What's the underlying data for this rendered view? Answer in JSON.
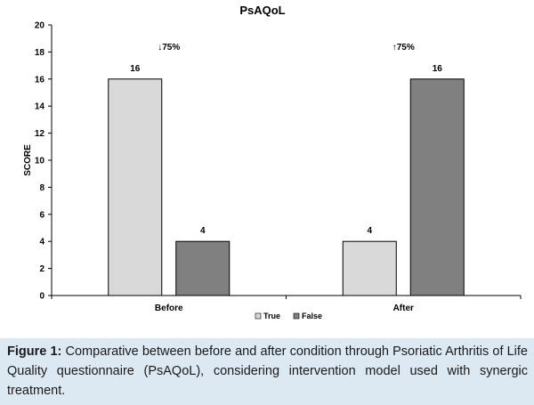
{
  "chart_data": {
    "type": "bar",
    "title": "PsAQoL",
    "ylabel": "SCORE",
    "xlabel": "",
    "categories": [
      "Before",
      "After"
    ],
    "ylim": [
      0,
      20
    ],
    "yticks": [
      "0",
      "2",
      "4",
      "6",
      "8",
      "10",
      "12",
      "14",
      "16",
      "18",
      "20"
    ],
    "series": [
      {
        "name": "True",
        "values": [
          16,
          4
        ],
        "color": "#d9d9d9"
      },
      {
        "name": "False",
        "values": [
          4,
          16
        ],
        "color": "#808080"
      }
    ],
    "data_labels": [
      [
        "16",
        "4"
      ],
      [
        "4",
        "16"
      ]
    ],
    "annotations": [
      "↓75%",
      "↑75%"
    ],
    "legend_position": "bottom",
    "grid": false
  },
  "caption": {
    "label": "Figure 1:",
    "text": " Comparative between before and after condition through Psoriatic Arthritis of Life Quality questionnaire (PsAQoL), considering intervention model used with synergic treatment."
  },
  "colors": {
    "caption_background": "#dce9f3",
    "bar_true": "#d9d9d9",
    "bar_false": "#808080",
    "bar_stroke": "#000000"
  }
}
